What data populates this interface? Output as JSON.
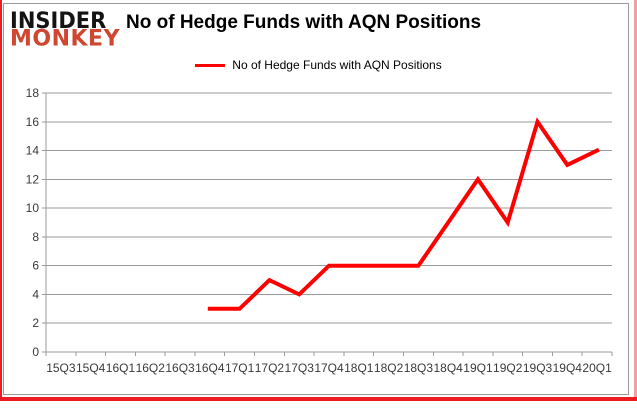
{
  "logo": {
    "line1": "INSIDER",
    "line2": "MONKEY"
  },
  "header": {
    "title": "No of Hedge Funds with AQN Positions"
  },
  "colors": {
    "accent_red": "#ff0000",
    "logo_red": "#cf4631",
    "border_red": "#ed1c24",
    "border_pink": "#f2a0a0",
    "grid_gray": "#9b9b9b",
    "axis_text": "#3a3a3a"
  },
  "chart_data": {
    "type": "line",
    "title": "No of Hedge Funds with AQN Positions",
    "categories": [
      "15Q3",
      "15Q4",
      "16Q1",
      "16Q2",
      "16Q3",
      "16Q4",
      "17Q1",
      "17Q2",
      "17Q3",
      "17Q4",
      "18Q1",
      "18Q2",
      "18Q3",
      "18Q4",
      "19Q1",
      "19Q2",
      "19Q3",
      "19Q4",
      "20Q1"
    ],
    "series": [
      {
        "name": "No of Hedge Funds with AQN Positions",
        "values": [
          null,
          null,
          null,
          null,
          null,
          3,
          3,
          5,
          4,
          6,
          6,
          6,
          6,
          9,
          12,
          9,
          16,
          13,
          14
        ]
      }
    ],
    "xlabel": "",
    "ylabel": "",
    "ylim": [
      0,
      18
    ],
    "ytick_step": 2,
    "grid": "horizontal",
    "legend_position": "top-center"
  }
}
